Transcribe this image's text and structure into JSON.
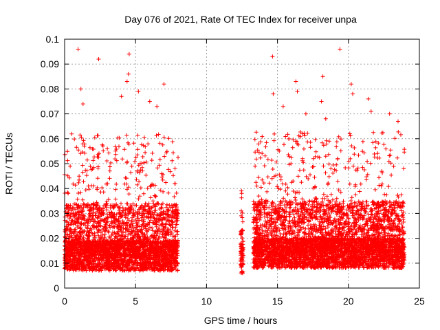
{
  "chart_data": {
    "type": "scatter",
    "title": "Day 076 of 2021, Rate Of TEC Index for receiver unpa",
    "xlabel": "GPS time / hours",
    "ylabel": "ROTI / TECUs",
    "xlim": [
      0,
      25
    ],
    "ylim": [
      0,
      0.1
    ],
    "x_ticks": [
      "0",
      "5",
      "10",
      "15",
      "20",
      "25"
    ],
    "y_ticks": [
      "0",
      "0.01",
      "0.02",
      "0.03",
      "0.04",
      "0.05",
      "0.06",
      "0.07",
      "0.08",
      "0.09",
      "0.1"
    ],
    "grid": true,
    "marker": "+",
    "color": "#ff0000",
    "series": [
      {
        "segments": [
          {
            "x_range": [
              0.0,
              8.0
            ],
            "base": 0.013,
            "spread": 0.035
          },
          {
            "x_range": [
              12.4,
              12.6
            ],
            "base": 0.012,
            "spread": 0.02
          },
          {
            "x_range": [
              13.3,
              23.95
            ],
            "base": 0.014,
            "spread": 0.035
          }
        ],
        "outliers": [
          [
            0.95,
            0.096
          ],
          [
            2.4,
            0.092
          ],
          [
            4.55,
            0.094
          ],
          [
            4.5,
            0.086
          ],
          [
            1.15,
            0.08
          ],
          [
            1.3,
            0.074
          ],
          [
            4.0,
            0.077
          ],
          [
            4.4,
            0.083
          ],
          [
            5.2,
            0.079
          ],
          [
            6.0,
            0.075
          ],
          [
            6.5,
            0.073
          ],
          [
            7.0,
            0.082
          ],
          [
            14.65,
            0.093
          ],
          [
            14.7,
            0.078
          ],
          [
            15.4,
            0.073
          ],
          [
            16.3,
            0.083
          ],
          [
            16.4,
            0.079
          ],
          [
            18.2,
            0.085
          ],
          [
            18.1,
            0.075
          ],
          [
            19.4,
            0.096
          ],
          [
            20.2,
            0.082
          ],
          [
            20.3,
            0.078
          ],
          [
            21.4,
            0.076
          ],
          [
            21.6,
            0.071
          ],
          [
            22.9,
            0.07
          ],
          [
            23.5,
            0.067
          ],
          [
            17.0,
            0.07
          ],
          [
            18.4,
            0.068
          ]
        ]
      }
    ]
  }
}
